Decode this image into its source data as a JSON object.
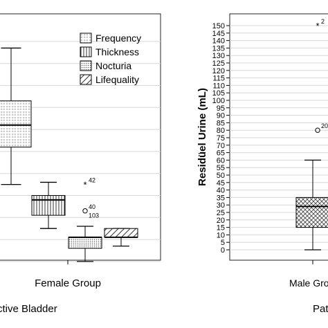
{
  "chart_data": [
    {
      "type": "boxplot",
      "categories": [
        "Female Group"
      ],
      "caption": "ctive Bladder",
      "legend_position": "top-right",
      "grid": true,
      "legend": [
        {
          "label": "Frequency",
          "pattern": "frequency"
        },
        {
          "label": "Thickness",
          "pattern": "thickness"
        },
        {
          "label": "Nocturia",
          "pattern": "nocturia"
        },
        {
          "label": "Lifequality",
          "pattern": "lifequality"
        }
      ],
      "boxes": [
        {
          "name": "Frequency",
          "whisker_low": 0.3,
          "q1": 0.47,
          "median": 0.57,
          "q3": 0.68,
          "whisker_high": 0.92,
          "outliers": []
        },
        {
          "name": "Thickness",
          "whisker_low": 0.1,
          "q1": 0.16,
          "median": 0.23,
          "q3": 0.25,
          "whisker_high": 0.31,
          "outliers": [
            {
              "value": 0.3,
              "label": "42",
              "marker": "star"
            },
            {
              "value": 0.18,
              "label": "40",
              "marker": "circle"
            },
            {
              "value": 0.14,
              "label": "103",
              "marker": "none"
            }
          ]
        },
        {
          "name": "Nocturia",
          "whisker_low": -0.05,
          "q1": 0.01,
          "median": 0.06,
          "q3": 0.06,
          "whisker_high": 0.11,
          "outliers": []
        },
        {
          "name": "Lifequality",
          "whisker_low": 0.02,
          "q1": 0.06,
          "median": 0.06,
          "q3": 0.1,
          "whisker_high": 0.1,
          "outliers": []
        }
      ]
    },
    {
      "type": "boxplot",
      "ylabel": "Residüel Urine (mL)",
      "yticks": [
        0,
        5,
        10,
        15,
        20,
        25,
        30,
        35,
        40,
        45,
        50,
        55,
        60,
        65,
        70,
        75,
        80,
        85,
        90,
        95,
        100,
        105,
        110,
        115,
        120,
        125,
        130,
        135,
        140,
        145,
        150
      ],
      "ylim": [
        -5,
        155
      ],
      "categories": [
        "Male Gro"
      ],
      "caption": "Pat",
      "grid": true,
      "boxes": [
        {
          "name": "Male Group",
          "whisker_low": 0,
          "q1": 15,
          "median": 29,
          "q3": 35,
          "whisker_high": 60,
          "outliers": [
            {
              "value": 80,
              "label": "20",
              "marker": "circle"
            },
            {
              "value": 150,
              "label": "2",
              "marker": "star"
            }
          ]
        }
      ]
    }
  ]
}
